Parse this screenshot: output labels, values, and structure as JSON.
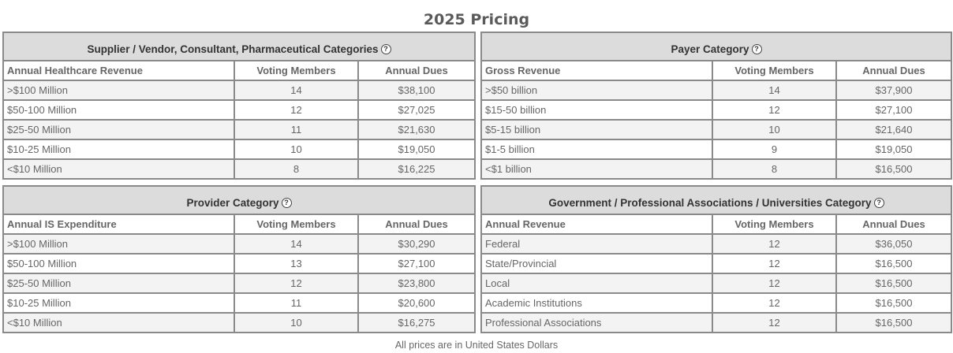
{
  "page_title": "2025 Pricing",
  "help_icon_glyph": "?",
  "footnote": "All prices are in United States Dollars",
  "tables": [
    {
      "category": "Supplier / Vendor, Consultant, Pharmaceutical Categories",
      "columns": [
        "Annual Healthcare Revenue",
        "Voting Members",
        "Annual Dues"
      ],
      "rows": [
        [
          ">$100 Million",
          "14",
          "$38,100"
        ],
        [
          "$50-100 Million",
          "12",
          "$27,025"
        ],
        [
          "$25-50 Million",
          "11",
          "$21,630"
        ],
        [
          "$10-25 Million",
          "10",
          "$19,050"
        ],
        [
          "<$10 Million",
          "8",
          "$16,225"
        ]
      ]
    },
    {
      "category": "Payer Category",
      "columns": [
        "Gross Revenue",
        "Voting Members",
        "Annual Dues"
      ],
      "rows": [
        [
          ">$50 billion",
          "14",
          "$37,900"
        ],
        [
          "$15-50 billion",
          "12",
          "$27,100"
        ],
        [
          "$5-15 billion",
          "10",
          "$21,640"
        ],
        [
          "$1-5 billion",
          "9",
          "$19,050"
        ],
        [
          "<$1 billion",
          "8",
          "$16,500"
        ]
      ]
    },
    {
      "category": "Provider Category",
      "columns": [
        "Annual IS Expenditure",
        "Voting Members",
        "Annual Dues"
      ],
      "rows": [
        [
          ">$100 Million",
          "14",
          "$30,290"
        ],
        [
          "$50-100 Million",
          "13",
          "$27,100"
        ],
        [
          "$25-50 Million",
          "12",
          "$23,800"
        ],
        [
          "$10-25 Million",
          "11",
          "$20,600"
        ],
        [
          "<$10 Million",
          "10",
          "$16,275"
        ]
      ]
    },
    {
      "category": "Government / Professional Associations / Universities Category",
      "columns": [
        "Annual Revenue",
        "Voting Members",
        "Annual Dues"
      ],
      "rows": [
        [
          "Federal",
          "12",
          "$36,050"
        ],
        [
          "State/Provincial",
          "12",
          "$16,500"
        ],
        [
          "Local",
          "12",
          "$16,500"
        ],
        [
          "Academic Institutions",
          "12",
          "$16,500"
        ],
        [
          "Professional Associations",
          "12",
          "$16,500"
        ]
      ]
    }
  ]
}
